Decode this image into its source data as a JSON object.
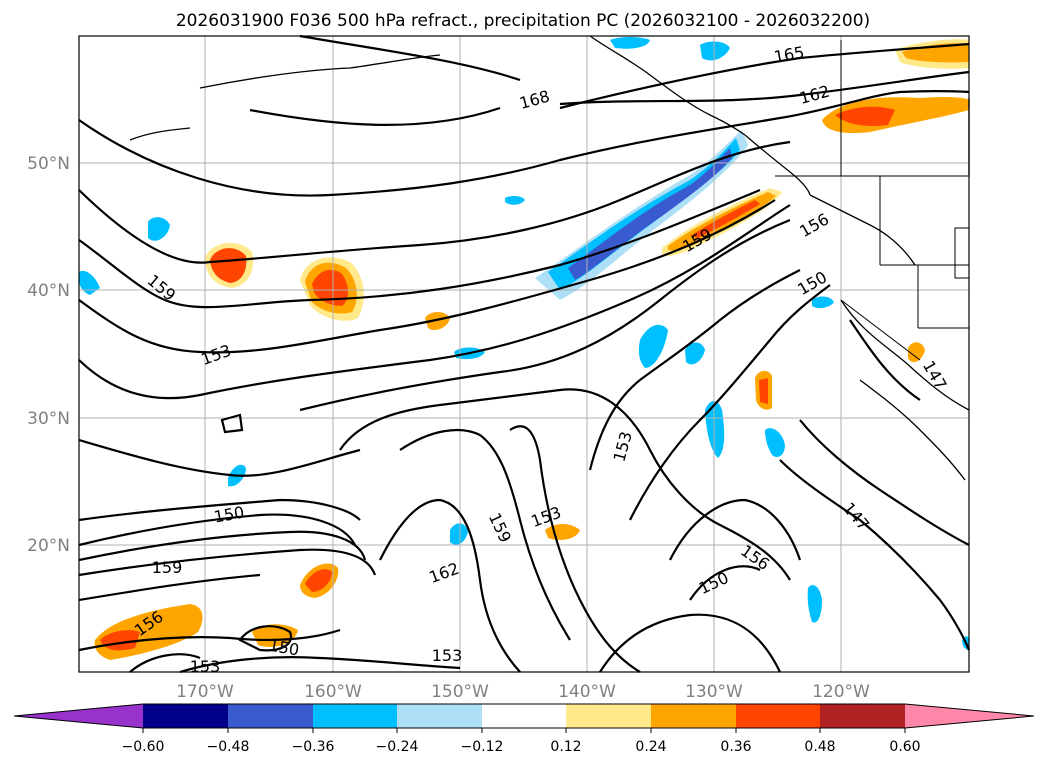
{
  "title": "2026031900 F036 500 hPa refract., precipitation PC (2026032100 - 2026032200)",
  "map": {
    "lat_labels": [
      "50°N",
      "40°N",
      "30°N",
      "20°N"
    ],
    "lon_labels": [
      "170°W",
      "160°W",
      "150°W",
      "140°W",
      "130°W",
      "120°W"
    ],
    "contour_labels": [
      {
        "text": "165"
      },
      {
        "text": "162"
      },
      {
        "text": "168"
      },
      {
        "text": "159"
      },
      {
        "text": "156"
      },
      {
        "text": "150"
      },
      {
        "text": "159"
      },
      {
        "text": "153"
      },
      {
        "text": "147"
      },
      {
        "text": "153"
      },
      {
        "text": "159"
      },
      {
        "text": "153"
      },
      {
        "text": "150"
      },
      {
        "text": "162"
      },
      {
        "text": "159"
      },
      {
        "text": "156"
      },
      {
        "text": "150"
      },
      {
        "text": "153"
      },
      {
        "text": "150"
      },
      {
        "text": "153"
      },
      {
        "text": "156"
      },
      {
        "text": "147"
      }
    ]
  },
  "colorbar": {
    "ticks": [
      "−0.60",
      "−0.48",
      "−0.36",
      "−0.24",
      "−0.12",
      "0.12",
      "0.24",
      "0.36",
      "0.48",
      "0.60"
    ],
    "colors": [
      "#9932cc",
      "#00008b",
      "#3a5bd0",
      "#00bfff",
      "#ade0f7",
      "#ffffff",
      "#ffe98a",
      "#ffa500",
      "#ff4500",
      "#b22222",
      "#ff88aa"
    ]
  }
}
